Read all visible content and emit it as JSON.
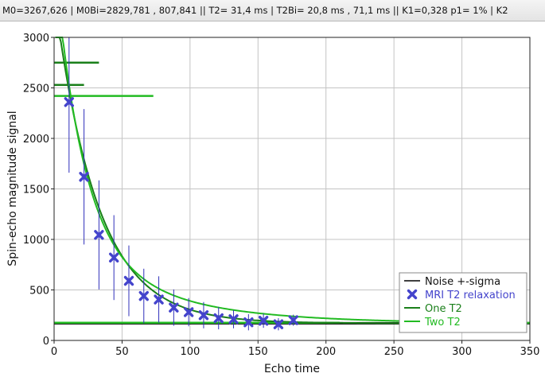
{
  "status_bar": {
    "text": "M0=3267,626 | M0Bi=2829,781 , 807,841 ||  T2= 31,4 ms | T2Bi= 20,8 ms ,  71,1 ms || K1=0,328 p1= 1% | K2"
  },
  "chart_data": {
    "type": "scatter",
    "xlabel": "Echo time",
    "ylabel": "Spin-echo magnitude signal",
    "xlim": [
      0,
      350
    ],
    "ylim": [
      0,
      3000
    ],
    "x_ticks": [
      0,
      50,
      100,
      150,
      200,
      250,
      300,
      350
    ],
    "y_ticks": [
      0,
      500,
      1000,
      1500,
      2000,
      2500,
      3000
    ],
    "grid": true,
    "legend_position": "bottom-right",
    "legend": [
      "Noise +-sigma",
      "MRI T2 relaxation",
      "One T2",
      "Two T2"
    ],
    "colors": {
      "noise": "#000000",
      "points": "#4444cc",
      "error_bars": "#3030bb",
      "one_t2": "#1a7f1a",
      "two_t2": "#22bb22"
    },
    "noise_level": 170,
    "points": {
      "x": [
        11,
        22,
        33,
        44,
        55,
        66,
        77,
        88,
        99,
        110,
        121,
        132,
        143,
        154,
        165,
        176
      ],
      "y": [
        2360,
        1620,
        1045,
        820,
        590,
        440,
        405,
        325,
        280,
        250,
        220,
        210,
        180,
        195,
        160,
        200
      ],
      "err": [
        700,
        670,
        540,
        420,
        350,
        270,
        230,
        180,
        140,
        130,
        110,
        90,
        80,
        70,
        60,
        55
      ]
    },
    "one_t2": {
      "M0": 3267.626,
      "T2": 31.4,
      "offset": 170,
      "marks": [
        {
          "y": 2750,
          "x0": 0,
          "x1": 33
        },
        {
          "y": 2530,
          "x0": 0,
          "x1": 22
        }
      ]
    },
    "two_t2": {
      "M0": [
        2829.781,
        807.841
      ],
      "T2": [
        20.8,
        71.1
      ],
      "offset": 170,
      "marks": [
        {
          "y": 2420,
          "x0": 0,
          "x1": 73
        },
        {
          "y": 175,
          "x0": 0,
          "x1": 210
        }
      ]
    }
  }
}
